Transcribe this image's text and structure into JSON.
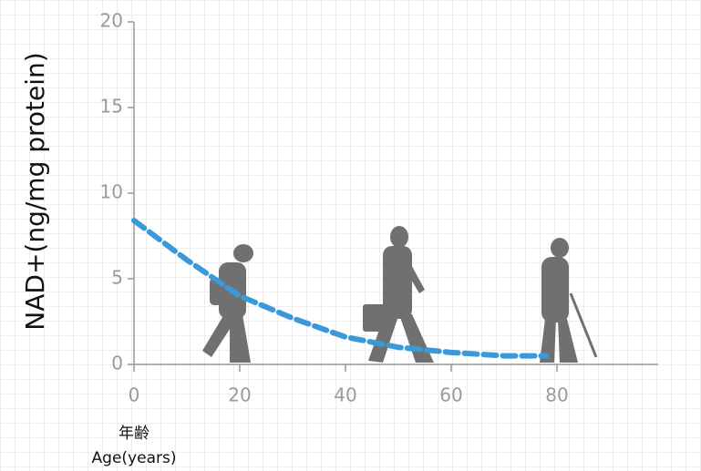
{
  "chart_data": {
    "type": "line",
    "y_label": "NAD+(ng/mg protein)",
    "x_label_jp": "年齢",
    "x_label": "Age(years)",
    "x": [
      0,
      10,
      20,
      30,
      40,
      50,
      60,
      70,
      78
    ],
    "values": [
      8.4,
      6.1,
      4.0,
      2.7,
      1.6,
      1.0,
      0.7,
      0.5,
      0.5
    ],
    "color": "#3a9ad9",
    "xlim": [
      0,
      100
    ],
    "xticks": [
      0,
      20,
      40,
      60,
      80
    ],
    "ylim": [
      0,
      20
    ],
    "yticks": [
      0,
      5,
      10,
      15,
      20
    ]
  }
}
